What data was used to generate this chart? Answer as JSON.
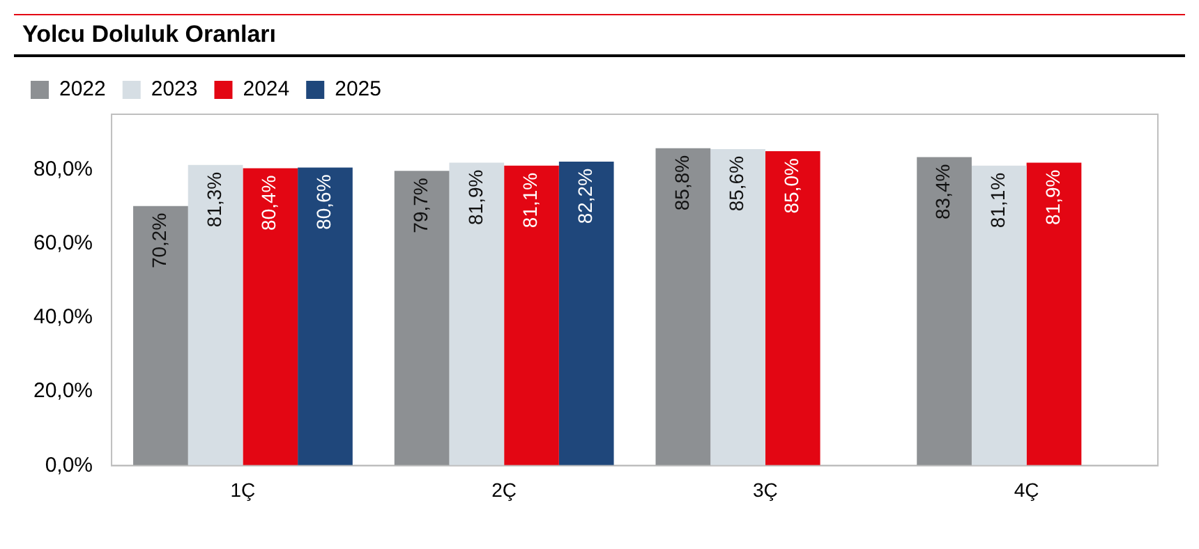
{
  "chart_data": {
    "type": "bar",
    "title": "Yolcu Doluluk Oranları",
    "categories": [
      "1Ç",
      "2Ç",
      "3Ç",
      "4Ç"
    ],
    "series": [
      {
        "name": "2022",
        "color": "#8d9093",
        "values": [
          70.2,
          79.7,
          85.8,
          83.4
        ],
        "value_labels": [
          "70,2%",
          "79,7%",
          "85,8%",
          "83,4%"
        ]
      },
      {
        "name": "2023",
        "color": "#d6dee4",
        "values": [
          81.3,
          81.9,
          85.6,
          81.1
        ],
        "value_labels": [
          "81,3%",
          "81,9%",
          "85,6%",
          "81,1%"
        ]
      },
      {
        "name": "2024",
        "color": "#e30613",
        "values": [
          80.4,
          81.1,
          85.0,
          81.9
        ],
        "value_labels": [
          "80,4%",
          "81,1%",
          "85,0%",
          "81,9%"
        ]
      },
      {
        "name": "2025",
        "color": "#1f477b",
        "values": [
          80.6,
          82.2,
          null,
          null
        ],
        "value_labels": [
          "80,6%",
          "82,2%",
          null,
          null
        ]
      }
    ],
    "ylim": [
      0,
      95
    ],
    "yticks": [
      {
        "value": 0,
        "label": "0,0%"
      },
      {
        "value": 20,
        "label": "20,0%"
      },
      {
        "value": 40,
        "label": "40,0%"
      },
      {
        "value": 60,
        "label": "60,0%"
      },
      {
        "value": 80,
        "label": "80,0%"
      }
    ],
    "grid": false,
    "legend": "top left"
  }
}
